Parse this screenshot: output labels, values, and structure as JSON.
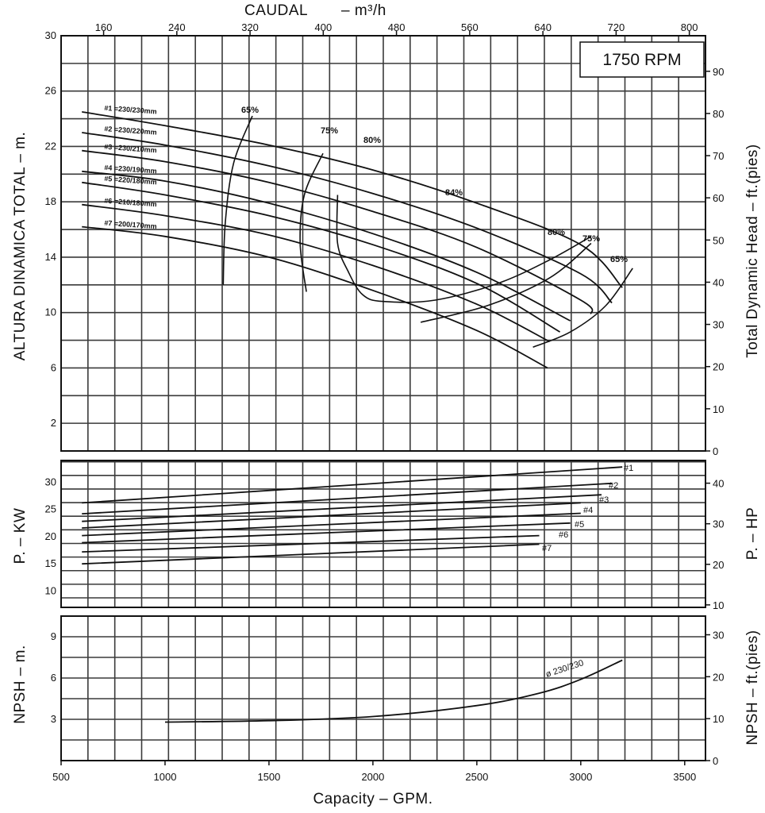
{
  "chart_data": {
    "type": "line",
    "speed_label": "1750 RPM",
    "top_axis": {
      "label": "CAUDAL",
      "unit": "– m³/h",
      "ticks": [
        "160",
        "240",
        "320",
        "400",
        "480",
        "560",
        "640",
        "720",
        "800"
      ]
    },
    "bottom_axis": {
      "label": "Capacity – GPM.",
      "ticks": [
        "500",
        "1000",
        "1500",
        "2000",
        "2500",
        "3000",
        "3500"
      ],
      "xlim": [
        500,
        3600
      ]
    },
    "head_panel": {
      "ylabel_left": "ALTURA DINAMICA TOTAL – m.",
      "ylabel_right": "Total Dynamic Head – ft.(pies)",
      "ylim": [
        0,
        30
      ],
      "left_ticks": [
        "2",
        "6",
        "10",
        "14",
        "18",
        "22",
        "26",
        "30"
      ],
      "right_ticks": [
        "0",
        "10",
        "20",
        "30",
        "40",
        "50",
        "60",
        "70",
        "80",
        "90"
      ],
      "series": [
        {
          "name": "#1 =230/230mm",
          "x": [
            600,
            1000,
            1500,
            2000,
            2500,
            3000,
            3200
          ],
          "y": [
            24.5,
            23.5,
            22.1,
            20.3,
            17.9,
            14.9,
            11.8
          ]
        },
        {
          "name": "#2 =230/220mm",
          "x": [
            600,
            1000,
            1500,
            2000,
            2500,
            3000,
            3150
          ],
          "y": [
            23.0,
            22.1,
            20.6,
            18.6,
            16.1,
            12.8,
            10.7
          ]
        },
        {
          "name": "#3 =230/210mm",
          "x": [
            600,
            1000,
            1500,
            2000,
            2500,
            3000,
            3050
          ],
          "y": [
            21.7,
            20.9,
            19.4,
            17.3,
            14.7,
            10.9,
            9.9
          ]
        },
        {
          "name": "#4 =230/190mm",
          "x": [
            600,
            1000,
            1500,
            2000,
            2500,
            2950
          ],
          "y": [
            20.2,
            19.5,
            17.9,
            15.7,
            12.9,
            9.4
          ]
        },
        {
          "name": "#5 =220/180mm",
          "x": [
            600,
            1000,
            1500,
            2000,
            2500,
            2900
          ],
          "y": [
            19.4,
            18.5,
            17.0,
            14.9,
            12.1,
            8.6
          ]
        },
        {
          "name": "#6 =210/180mm",
          "x": [
            600,
            1000,
            1500,
            2000,
            2500,
            2850
          ],
          "y": [
            17.8,
            17.0,
            15.6,
            13.4,
            10.6,
            7.9
          ]
        },
        {
          "name": "#7 =200/170mm",
          "x": [
            600,
            1000,
            1500,
            2000,
            2500,
            2840
          ],
          "y": [
            16.2,
            15.5,
            14.0,
            11.6,
            8.7,
            6.0
          ]
        }
      ],
      "efficiency": [
        {
          "label": "65%",
          "x": [
            1280,
            1290,
            1330,
            1420
          ],
          "y": [
            12.0,
            16.5,
            20.8,
            24.2
          ]
        },
        {
          "label": "75%",
          "x": [
            1680,
            1650,
            1670,
            1760
          ],
          "y": [
            11.5,
            15.0,
            18.5,
            21.5
          ]
        },
        {
          "label": "80%",
          "x": [
            1830,
            1830,
            1880,
            1950,
            2050,
            2300,
            2600,
            2850,
            3050
          ],
          "y": [
            18.5,
            15.0,
            13.0,
            11.3,
            10.8,
            10.9,
            12.1,
            13.8,
            15.5
          ]
        },
        {
          "label": "84%",
          "x": [],
          "y": []
        },
        {
          "label": "80%",
          "x": [],
          "y": []
        },
        {
          "label": "75%",
          "x": [
            2230,
            2550,
            2850,
            3050
          ],
          "y": [
            9.3,
            10.5,
            12.5,
            15.0
          ]
        },
        {
          "label": "65%",
          "x": [
            2770,
            2950,
            3120,
            3250
          ],
          "y": [
            7.5,
            8.6,
            10.5,
            13.2
          ]
        }
      ]
    },
    "power_panel": {
      "ylabel_left": "P. – KW",
      "ylabel_right": "P. – HP",
      "ylim": [
        7,
        34
      ],
      "left_ticks": [
        "10",
        "15",
        "20",
        "25",
        "30"
      ],
      "right_ticks": [
        "10",
        "20",
        "30",
        "40"
      ],
      "series": [
        {
          "name": "#1",
          "x": [
            600,
            3200
          ],
          "y": [
            26.2,
            32.8
          ]
        },
        {
          "name": "#2",
          "x": [
            600,
            3150
          ],
          "y": [
            24.2,
            29.8
          ]
        },
        {
          "name": "#3",
          "x": [
            600,
            3100
          ],
          "y": [
            22.8,
            27.7
          ]
        },
        {
          "name": "#4",
          "x": [
            600,
            3000
          ],
          "y": [
            21.6,
            26.2
          ]
        },
        {
          "name": "#5",
          "x": [
            600,
            3000
          ],
          "y": [
            20.2,
            24.3
          ]
        },
        {
          "name": "#6",
          "x": [
            600,
            2950
          ],
          "y": [
            18.9,
            22.5
          ]
        },
        {
          "name": "#7",
          "x": [
            600,
            2800
          ],
          "y": [
            17.2,
            20.2
          ]
        },
        {
          "name": "",
          "x": [
            600,
            2800
          ],
          "y": [
            15.0,
            18.6
          ]
        }
      ]
    },
    "npsh_panel": {
      "ylabel_left": "NPSH – m.",
      "ylabel_right": "NPSH – ft.(pies)",
      "ylim": [
        0,
        10.5
      ],
      "left_ticks": [
        "3",
        "6",
        "9"
      ],
      "right_ticks": [
        "0",
        "10",
        "20",
        "30"
      ],
      "series": [
        {
          "name": "ø 230/230",
          "x": [
            1000,
            1500,
            2000,
            2500,
            2800,
            3000,
            3200
          ],
          "y": [
            2.8,
            2.9,
            3.2,
            4.0,
            4.9,
            5.9,
            7.3
          ]
        }
      ]
    },
    "grid": true
  }
}
